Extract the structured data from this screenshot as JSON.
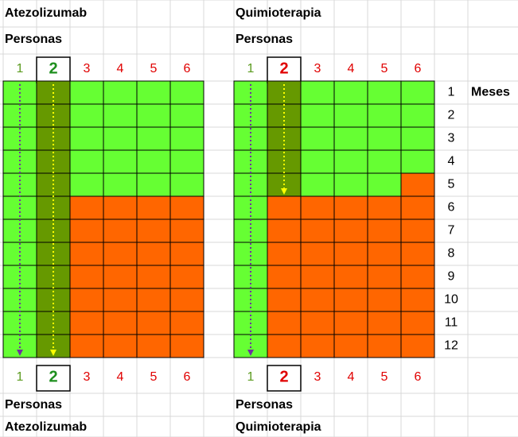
{
  "panels": [
    {
      "title": "Atezolizumab",
      "label": "Personas",
      "persons": [
        "1",
        "2",
        "3",
        "4",
        "5",
        "6"
      ],
      "months_alive": [
        12,
        12,
        5,
        5,
        5,
        5
      ],
      "highlight": 1
    },
    {
      "title": "Quimioterapia",
      "label": "Personas",
      "persons": [
        "1",
        "2",
        "3",
        "4",
        "5",
        "6"
      ],
      "months_alive": [
        12,
        5,
        5,
        5,
        5,
        4
      ],
      "highlight": 1
    }
  ],
  "months": [
    "1",
    "2",
    "3",
    "4",
    "5",
    "6",
    "7",
    "8",
    "9",
    "10",
    "11",
    "12"
  ],
  "months_label": "Meses"
}
